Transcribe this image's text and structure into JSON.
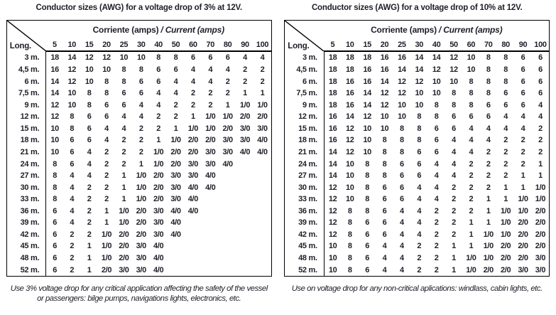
{
  "page": {
    "background": "#ffffff",
    "text_color": "#1e1e28",
    "border_color": "#000000"
  },
  "tables": [
    {
      "title": "Conductor sizes (AWG) for a voltage drop of 3% at 12V.",
      "corner_label": "Long.",
      "header_normal": "Corriente (amps)",
      "header_italic": "/ Current (amps)",
      "columns": [
        "5",
        "10",
        "15",
        "20",
        "25",
        "30",
        "40",
        "50",
        "60",
        "70",
        "80",
        "90",
        "100"
      ],
      "rows": [
        {
          "label": "3 m.",
          "values": [
            "18",
            "14",
            "12",
            "12",
            "10",
            "10",
            "8",
            "8",
            "6",
            "6",
            "6",
            "4",
            "4"
          ]
        },
        {
          "label": "4,5 m.",
          "values": [
            "16",
            "12",
            "10",
            "10",
            "8",
            "8",
            "6",
            "6",
            "4",
            "4",
            "4",
            "2",
            "2"
          ]
        },
        {
          "label": "6 m.",
          "values": [
            "14",
            "12",
            "10",
            "8",
            "8",
            "6",
            "6",
            "4",
            "4",
            "4",
            "2",
            "2",
            "2"
          ]
        },
        {
          "label": "7,5 m.",
          "values": [
            "14",
            "10",
            "8",
            "8",
            "6",
            "6",
            "4",
            "4",
            "2",
            "2",
            "2",
            "1",
            "1"
          ]
        },
        {
          "label": "9 m.",
          "values": [
            "12",
            "10",
            "8",
            "6",
            "6",
            "4",
            "4",
            "2",
            "2",
            "2",
            "1",
            "1/0",
            "1/0"
          ]
        },
        {
          "label": "12 m.",
          "values": [
            "12",
            "8",
            "6",
            "6",
            "4",
            "4",
            "2",
            "2",
            "1",
            "1/0",
            "1/0",
            "2/0",
            "2/0"
          ]
        },
        {
          "label": "15 m.",
          "values": [
            "10",
            "8",
            "6",
            "4",
            "4",
            "2",
            "2",
            "1",
            "1/0",
            "1/0",
            "2/0",
            "3/0",
            "3/0"
          ]
        },
        {
          "label": "18 m.",
          "values": [
            "10",
            "6",
            "6",
            "4",
            "2",
            "2",
            "1",
            "1/0",
            "2/0",
            "2/0",
            "3/0",
            "3/0",
            "4/0"
          ]
        },
        {
          "label": "21 m.",
          "values": [
            "10",
            "6",
            "4",
            "2",
            "2",
            "2",
            "1/0",
            "2/0",
            "2/0",
            "3/0",
            "3/0",
            "4/0",
            "4/0"
          ]
        },
        {
          "label": "24 m.",
          "values": [
            "8",
            "6",
            "4",
            "2",
            "2",
            "1",
            "1/0",
            "2/0",
            "3/0",
            "3/0",
            "4/0",
            "",
            ""
          ]
        },
        {
          "label": "27 m.",
          "values": [
            "8",
            "4",
            "4",
            "2",
            "1",
            "1/0",
            "2/0",
            "3/0",
            "3/0",
            "4/0",
            "",
            "",
            ""
          ]
        },
        {
          "label": "30 m.",
          "values": [
            "8",
            "4",
            "2",
            "2",
            "1",
            "1/0",
            "2/0",
            "3/0",
            "4/0",
            "4/0",
            "",
            "",
            ""
          ]
        },
        {
          "label": "33 m.",
          "values": [
            "8",
            "4",
            "2",
            "2",
            "1",
            "1/0",
            "2/0",
            "3/0",
            "4/0",
            "",
            "",
            "",
            ""
          ]
        },
        {
          "label": "36 m.",
          "values": [
            "6",
            "4",
            "2",
            "1",
            "1/0",
            "2/0",
            "3/0",
            "4/0",
            "4/0",
            "",
            "",
            "",
            ""
          ]
        },
        {
          "label": "39 m.",
          "values": [
            "6",
            "4",
            "2",
            "1",
            "1/0",
            "2/0",
            "3/0",
            "4/0",
            "",
            "",
            "",
            "",
            ""
          ]
        },
        {
          "label": "42 m.",
          "values": [
            "6",
            "2",
            "2",
            "1/0",
            "2/0",
            "2/0",
            "3/0",
            "4/0",
            "",
            "",
            "",
            "",
            ""
          ]
        },
        {
          "label": "45 m.",
          "values": [
            "6",
            "2",
            "1",
            "1/0",
            "2/0",
            "3/0",
            "4/0",
            "",
            "",
            "",
            "",
            "",
            ""
          ]
        },
        {
          "label": "48 m.",
          "values": [
            "6",
            "2",
            "1",
            "1/0",
            "2/0",
            "3/0",
            "4/0",
            "",
            "",
            "",
            "",
            "",
            ""
          ]
        },
        {
          "label": "52 m.",
          "values": [
            "6",
            "2",
            "1",
            "2/0",
            "3/0",
            "3/0",
            "4/0",
            "",
            "",
            "",
            "",
            "",
            ""
          ]
        }
      ],
      "footnote": "Use 3% voltage drop for any critical application affecting the safety of the vessel or passengers: bilge pumps, navigations lights, electronics, etc."
    },
    {
      "title": "Conductor sizes (AWG) for a voltage drop of 10% at 12V.",
      "corner_label": "Long.",
      "header_normal": "Corriente (amps)",
      "header_italic": "/ Current (amps)",
      "columns": [
        "5",
        "10",
        "15",
        "20",
        "25",
        "30",
        "40",
        "50",
        "60",
        "70",
        "80",
        "90",
        "100"
      ],
      "rows": [
        {
          "label": "3 m.",
          "values": [
            "18",
            "18",
            "18",
            "16",
            "16",
            "14",
            "14",
            "12",
            "10",
            "8",
            "8",
            "6",
            "6"
          ]
        },
        {
          "label": "4,5 m.",
          "values": [
            "18",
            "18",
            "16",
            "16",
            "14",
            "14",
            "12",
            "12",
            "10",
            "8",
            "8",
            "6",
            "6"
          ]
        },
        {
          "label": "6 m.",
          "values": [
            "18",
            "16",
            "16",
            "14",
            "12",
            "12",
            "10",
            "10",
            "8",
            "8",
            "8",
            "6",
            "6"
          ]
        },
        {
          "label": "7,5 m.",
          "values": [
            "18",
            "16",
            "14",
            "12",
            "12",
            "10",
            "10",
            "8",
            "8",
            "8",
            "6",
            "6",
            "6"
          ]
        },
        {
          "label": "9 m.",
          "values": [
            "18",
            "16",
            "14",
            "12",
            "10",
            "10",
            "8",
            "8",
            "8",
            "6",
            "6",
            "6",
            "4"
          ]
        },
        {
          "label": "12 m.",
          "values": [
            "16",
            "14",
            "12",
            "10",
            "10",
            "8",
            "8",
            "6",
            "6",
            "6",
            "4",
            "4",
            "4"
          ]
        },
        {
          "label": "15 m.",
          "values": [
            "16",
            "12",
            "10",
            "10",
            "8",
            "8",
            "6",
            "6",
            "4",
            "4",
            "4",
            "4",
            "2"
          ]
        },
        {
          "label": "18 m.",
          "values": [
            "16",
            "12",
            "10",
            "8",
            "8",
            "8",
            "6",
            "4",
            "4",
            "4",
            "2",
            "2",
            "2"
          ]
        },
        {
          "label": "21 m.",
          "values": [
            "14",
            "12",
            "10",
            "8",
            "8",
            "6",
            "6",
            "4",
            "4",
            "2",
            "2",
            "2",
            "2"
          ]
        },
        {
          "label": "24 m.",
          "values": [
            "14",
            "10",
            "8",
            "8",
            "6",
            "6",
            "4",
            "4",
            "2",
            "2",
            "2",
            "2",
            "1"
          ]
        },
        {
          "label": "27 m.",
          "values": [
            "14",
            "10",
            "8",
            "8",
            "6",
            "6",
            "4",
            "4",
            "2",
            "2",
            "2",
            "1",
            "1"
          ]
        },
        {
          "label": "30 m.",
          "values": [
            "12",
            "10",
            "8",
            "6",
            "6",
            "4",
            "4",
            "2",
            "2",
            "2",
            "1",
            "1",
            "1/0"
          ]
        },
        {
          "label": "33 m.",
          "values": [
            "12",
            "10",
            "8",
            "6",
            "6",
            "4",
            "4",
            "2",
            "2",
            "1",
            "1",
            "1/0",
            "1/0"
          ]
        },
        {
          "label": "36 m.",
          "values": [
            "12",
            "8",
            "8",
            "6",
            "4",
            "4",
            "2",
            "2",
            "2",
            "1",
            "1/0",
            "1/0",
            "2/0"
          ]
        },
        {
          "label": "39 m.",
          "values": [
            "12",
            "8",
            "6",
            "6",
            "4",
            "4",
            "2",
            "2",
            "1",
            "1",
            "1/0",
            "2/0",
            "2/0"
          ]
        },
        {
          "label": "42 m.",
          "values": [
            "12",
            "8",
            "6",
            "6",
            "4",
            "4",
            "2",
            "2",
            "1",
            "1/0",
            "1/0",
            "2/0",
            "2/0"
          ]
        },
        {
          "label": "45 m.",
          "values": [
            "10",
            "8",
            "6",
            "4",
            "4",
            "2",
            "2",
            "1",
            "1",
            "1/0",
            "2/0",
            "2/0",
            "2/0"
          ]
        },
        {
          "label": "48 m.",
          "values": [
            "10",
            "8",
            "6",
            "4",
            "4",
            "2",
            "2",
            "1",
            "1/0",
            "1/0",
            "2/0",
            "2/0",
            "3/0"
          ]
        },
        {
          "label": "52 m.",
          "values": [
            "10",
            "8",
            "6",
            "4",
            "4",
            "2",
            "2",
            "1",
            "1/0",
            "2/0",
            "2/0",
            "3/0",
            "3/0"
          ]
        }
      ],
      "footnote": "Use on voltage drop for any non-critical aplications: windlass, cabin lights, etc."
    }
  ]
}
